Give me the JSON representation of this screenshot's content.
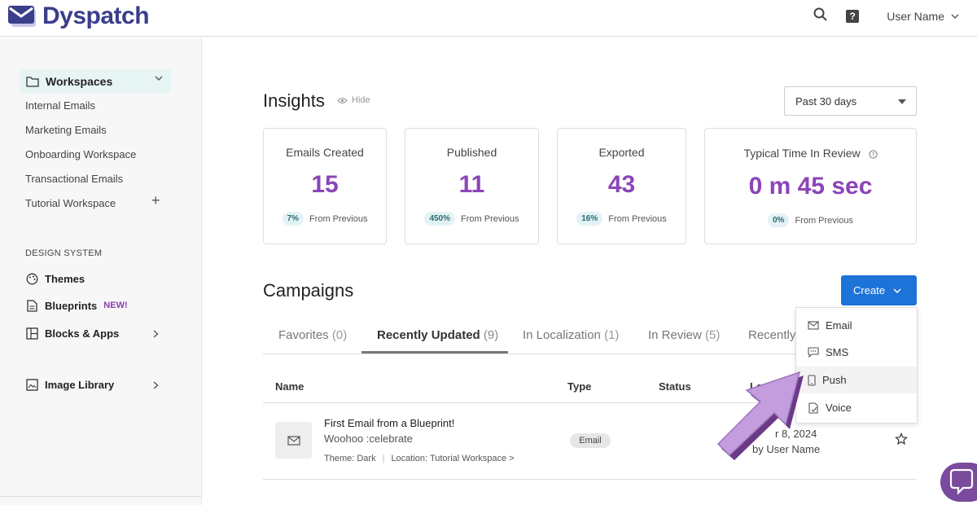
{
  "header": {
    "logo_text": "Dyspatch",
    "user_name": "User Name"
  },
  "sidebar": {
    "workspaces_label": "Workspaces",
    "workspaces": [
      "Internal Emails",
      "Marketing Emails",
      "Onboarding Workspace",
      "Transactional Emails",
      "Tutorial Workspace"
    ],
    "design_system_heading": "DESIGN SYSTEM",
    "themes_label": "Themes",
    "blueprints_label": "Blueprints",
    "blueprints_badge": "NEW!",
    "blocks_label": "Blocks & Apps",
    "image_library_label": "Image Library"
  },
  "insights": {
    "title": "Insights",
    "hide_label": "Hide",
    "period": "Past 30 days",
    "from_previous": "From Previous",
    "cards": [
      {
        "title": "Emails Created",
        "value": "15",
        "pct": "7%"
      },
      {
        "title": "Published",
        "value": "11",
        "pct": "450%"
      },
      {
        "title": "Exported",
        "value": "43",
        "pct": "16%"
      },
      {
        "title": "Typical Time In Review",
        "value": "0 m 45 sec",
        "pct": "0%"
      }
    ]
  },
  "campaigns": {
    "title": "Campaigns",
    "create_label": "Create",
    "tabs": [
      {
        "label": "Favorites",
        "count": "(0)"
      },
      {
        "label": "Recently Updated",
        "count": "(9)"
      },
      {
        "label": "In Localization",
        "count": "(1)"
      },
      {
        "label": "In Review",
        "count": "(5)"
      },
      {
        "label": "Recently",
        "count": ""
      }
    ],
    "columns": {
      "name": "Name",
      "type": "Type",
      "status": "Status",
      "last": "Last U"
    },
    "rows": [
      {
        "title": "First Email from a Blueprint!",
        "subtitle": "Woohoo :celebrate",
        "theme": "Theme: Dark",
        "location": "Location: Tutorial Workspace >",
        "type": "Email",
        "date": "r 8, 2024",
        "by": "by User Name"
      }
    ]
  },
  "create_menu": {
    "items": [
      "Email",
      "SMS",
      "Push",
      "Voice"
    ]
  },
  "colors": {
    "accent_purple": "#8b45b8",
    "create_blue": "#1e73d8",
    "brand_navy": "#3b3e8a"
  }
}
